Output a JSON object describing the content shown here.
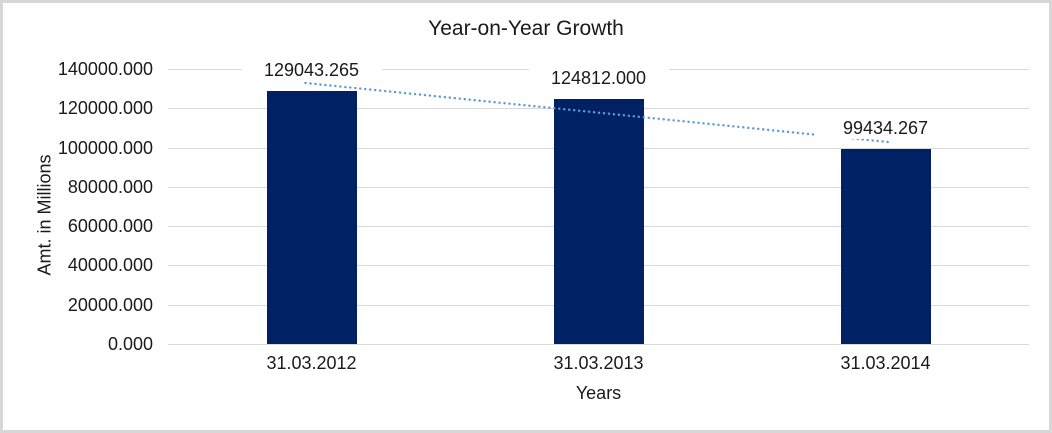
{
  "window": {
    "background": "#ffffff",
    "border_color": "#d7d7d7"
  },
  "chart_data": {
    "type": "bar",
    "title": "Year-on-Year Growth",
    "xlabel": "Years",
    "ylabel": "Amt. in Millions",
    "categories": [
      "31.03.2012",
      "31.03.2013",
      "31.03.2014"
    ],
    "series": [
      {
        "name": "Amt. in Millions",
        "values": [
          129043.265,
          124812.0,
          99434.267
        ]
      }
    ],
    "data_labels": [
      "129043.265",
      "124812.000",
      "99434.267"
    ],
    "y_ticks": [
      {
        "value": 140000,
        "label": "140000.000"
      },
      {
        "value": 120000,
        "label": "120000.000"
      },
      {
        "value": 100000,
        "label": "100000.000"
      },
      {
        "value": 80000,
        "label": "80000.000"
      },
      {
        "value": 60000,
        "label": "60000.000"
      },
      {
        "value": 40000,
        "label": "40000.000"
      },
      {
        "value": 20000,
        "label": "20000.000"
      },
      {
        "value": 0,
        "label": "0.000"
      }
    ],
    "ylim": [
      0,
      140000
    ],
    "grid": true,
    "legend": "none",
    "trendline": {
      "type": "linear",
      "style": "dotted",
      "values": [
        132567.682,
        117763.177,
        102958.673
      ]
    },
    "colors": {
      "bar": "#002264",
      "trendline": "#5b9bd5",
      "gridline": "#d9d9d9",
      "text": "#1a1a1a"
    }
  }
}
